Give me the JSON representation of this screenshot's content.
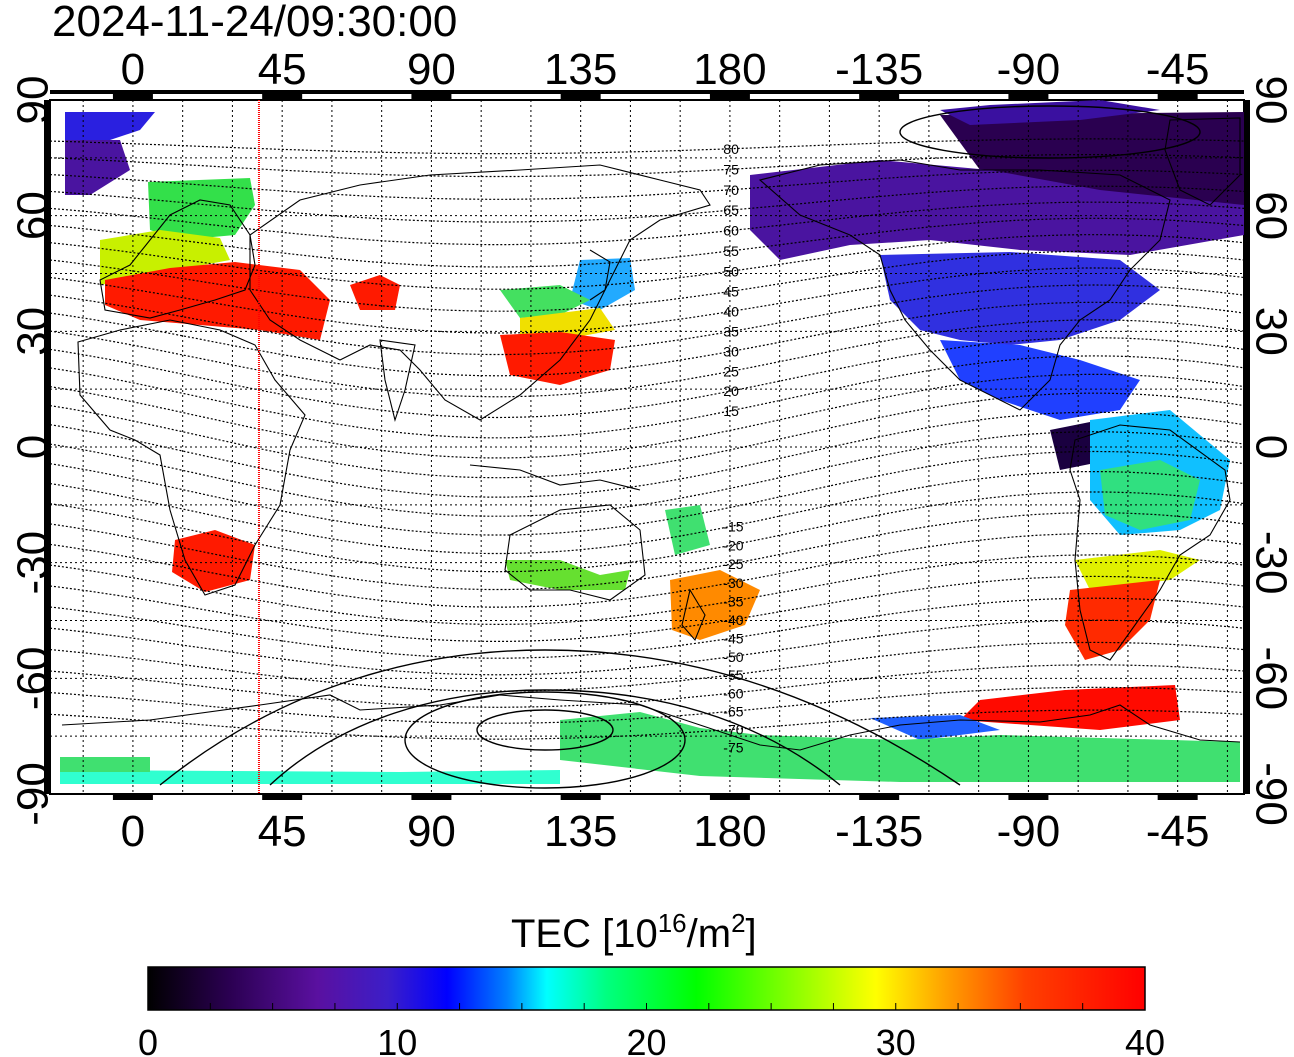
{
  "timestamp": "2024-11-24/09:30:00",
  "lon_ticks": [
    "0",
    "45",
    "90",
    "135",
    "180",
    "-135",
    "-90",
    "-45"
  ],
  "lat_ticks": [
    "90",
    "60",
    "30",
    "0",
    "-30",
    "-60",
    "-90"
  ],
  "colorbar": {
    "label_main": "TEC  [10",
    "label_exp1": "16",
    "label_mid": "/m",
    "label_exp2": "2",
    "label_end": "]",
    "ticks": [
      "0",
      "10",
      "20",
      "30",
      "40"
    ],
    "range": [
      0,
      40
    ],
    "colors": [
      "#000000",
      "#2a0050",
      "#5a10a0",
      "#3c1ec8",
      "#0000ff",
      "#0080ff",
      "#00ffff",
      "#00ff80",
      "#00ff00",
      "#80ff00",
      "#ffff00",
      "#ffa000",
      "#ff4000",
      "#ff0000"
    ]
  },
  "geomagnetic_latitude_labels": {
    "north": [
      "80",
      "75",
      "70",
      "65",
      "60",
      "55",
      "50",
      "45",
      "40",
      "35",
      "30",
      "25",
      "20",
      "15"
    ],
    "south": [
      "-15",
      "-20",
      "-25",
      "-30",
      "-35",
      "-40",
      "-45",
      "-50",
      "-55",
      "-60",
      "-65",
      "-70",
      "-75"
    ]
  },
  "marker_line": {
    "longitude": 38,
    "color": "#ff0000"
  },
  "map": {
    "lon_range": [
      -25,
      335
    ],
    "lat_range": [
      -90,
      90
    ],
    "grid": true
  }
}
